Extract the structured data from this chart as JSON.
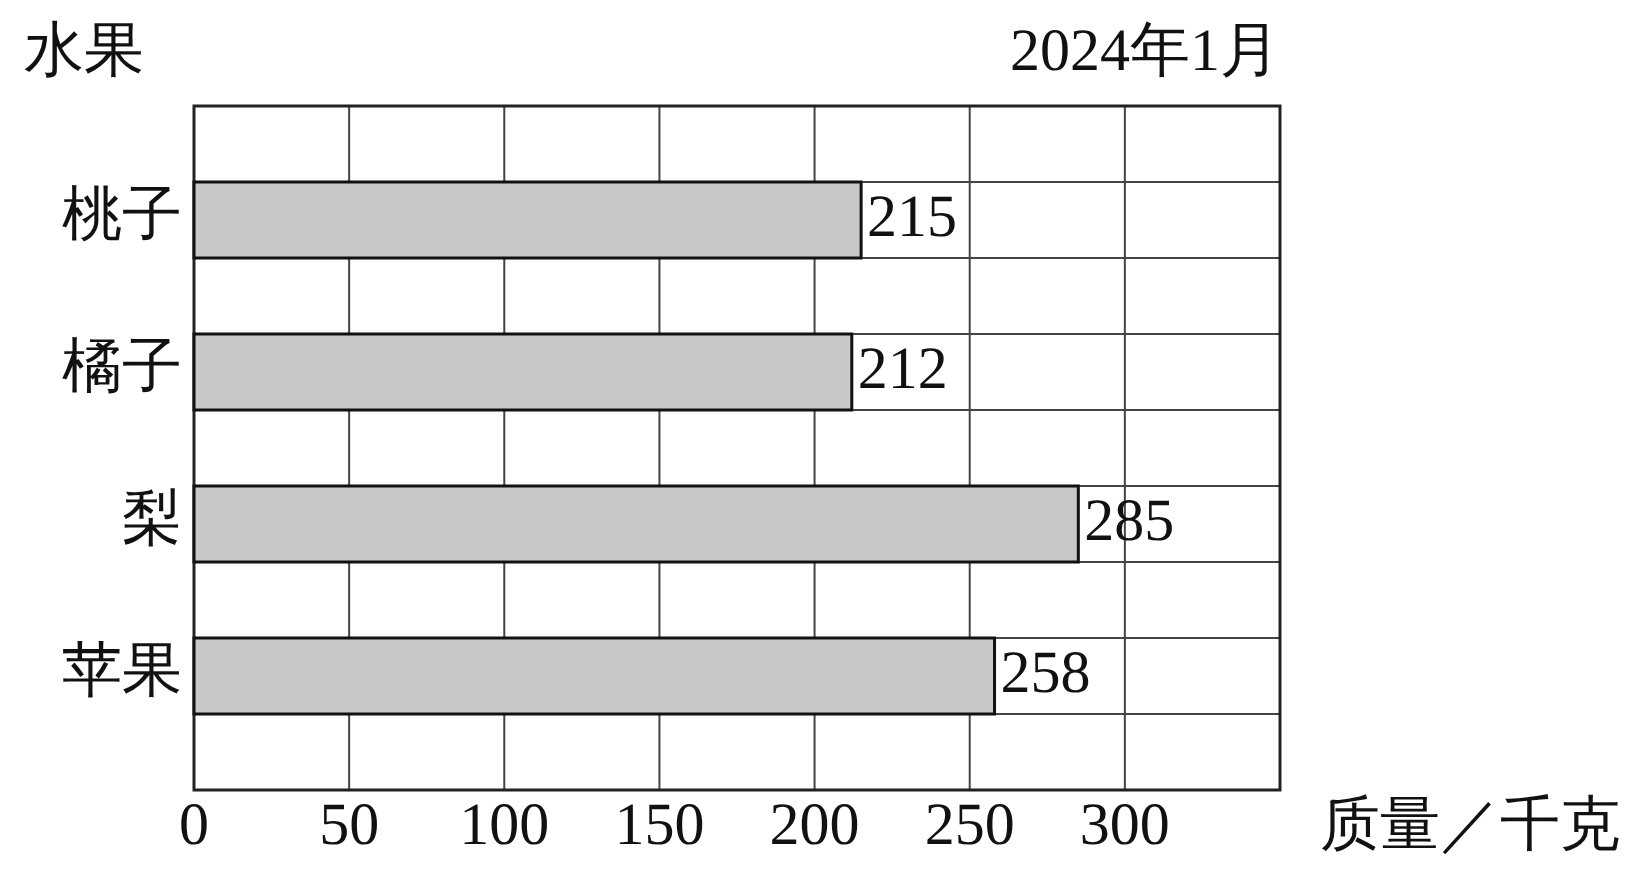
{
  "chart_data": {
    "type": "bar",
    "orientation": "horizontal",
    "title": "2024年1月",
    "ylabel": "水果",
    "xlabel": "质量／千克",
    "categories": [
      "桃子",
      "橘子",
      "梨",
      "苹果"
    ],
    "values": [
      215,
      212,
      285,
      258
    ],
    "color": "#c8c8c8",
    "xlim": [
      0,
      350
    ],
    "xticks": [
      0,
      50,
      100,
      150,
      200,
      250,
      300
    ],
    "grid": true,
    "data_labels": true
  }
}
